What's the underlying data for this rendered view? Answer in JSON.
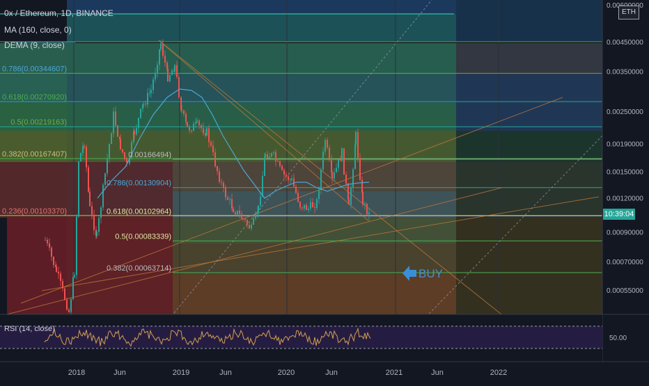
{
  "header": {
    "title": "0x / Ethereum, 1D, BINANCE",
    "ma_label": "MA (160, close, 0)",
    "dema_label": "DEMA (9, close)",
    "quote_currency": "ETH",
    "current_time": "10:39:04",
    "rsi_label": "RSI (14, close)"
  },
  "chart_data": [
    {
      "type": "line",
      "pane": "price",
      "series": [
        {
          "name": "0x / Ethereum"
        }
      ],
      "x_ticks": [
        "2018",
        "Jun",
        "2019",
        "Jun",
        "2020",
        "Jun",
        "2021",
        "Jun",
        "2022"
      ],
      "y_ticks": [
        0.006,
        0.0045,
        0.0035,
        0.0025,
        0.0019,
        0.0015,
        0.0012,
        0.0009,
        0.0007,
        0.00055
      ],
      "y_tick_labels": [
        "0.00600000",
        "0.00450000",
        "0.00350000",
        "0.00250000",
        "0.00190000",
        "0.00150000",
        "0.00120000",
        "0.00090000",
        "0.00070000",
        "0.00055000"
      ],
      "y_scale": "log",
      "ylim": [
        0.00045,
        0.0062
      ],
      "fib_upper": [
        {
          "label": "0.786(0.00344607)",
          "value": 0.00344607
        },
        {
          "label": "0.618(0.00270920)",
          "value": 0.0027092
        },
        {
          "label": "0.5(0.00219163)",
          "value": 0.00219163
        },
        {
          "label": "0.382(0.00167407)",
          "value": 0.00167407
        },
        {
          "label": "0.236(0.00103370)",
          "value": 0.0010337
        }
      ],
      "fib_lower": [
        {
          "label": "0.00166494)",
          "value": 0.00166494
        },
        {
          "label": "0.786(0.00130904)",
          "value": 0.00130904
        },
        {
          "label": "0.618(0.00102964)",
          "value": 0.00102964
        },
        {
          "label": "0.5(0.00083339)",
          "value": 0.00083339
        },
        {
          "label": "0.382(0.00063714)",
          "value": 0.00063714
        }
      ],
      "annotation": "BUY",
      "colors": {
        "bull": "#26a69a",
        "bear": "#ef5350",
        "ma": "#4aa8d8",
        "dema": "#c7a25b",
        "trend": "#b5651d"
      }
    },
    {
      "type": "line",
      "pane": "rsi",
      "series": [
        {
          "name": "RSI (14, close)"
        }
      ],
      "y_ticks": [
        50
      ],
      "y_tick_labels": [
        "50.00"
      ],
      "bands": [
        70,
        30
      ]
    }
  ]
}
